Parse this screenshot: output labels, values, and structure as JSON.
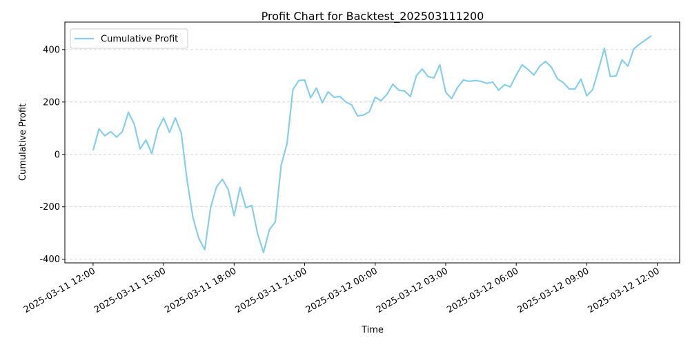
{
  "chart_data": {
    "type": "line",
    "title": "Profit Chart for Backtest_202503111200",
    "xlabel": "Time",
    "ylabel": "Cumulative Profit",
    "x": [
      "2025-03-11 12:00",
      "2025-03-11 12:15",
      "2025-03-11 12:30",
      "2025-03-11 12:45",
      "2025-03-11 13:00",
      "2025-03-11 13:15",
      "2025-03-11 13:30",
      "2025-03-11 13:45",
      "2025-03-11 14:00",
      "2025-03-11 14:15",
      "2025-03-11 14:30",
      "2025-03-11 14:45",
      "2025-03-11 15:00",
      "2025-03-11 15:15",
      "2025-03-11 15:30",
      "2025-03-11 15:45",
      "2025-03-11 16:00",
      "2025-03-11 16:15",
      "2025-03-11 16:30",
      "2025-03-11 16:45",
      "2025-03-11 17:00",
      "2025-03-11 17:15",
      "2025-03-11 17:30",
      "2025-03-11 17:45",
      "2025-03-11 18:00",
      "2025-03-11 18:15",
      "2025-03-11 18:30",
      "2025-03-11 18:45",
      "2025-03-11 19:00",
      "2025-03-11 19:15",
      "2025-03-11 19:30",
      "2025-03-11 19:45",
      "2025-03-11 20:00",
      "2025-03-11 20:15",
      "2025-03-11 20:30",
      "2025-03-11 20:45",
      "2025-03-11 21:00",
      "2025-03-11 21:15",
      "2025-03-11 21:30",
      "2025-03-11 21:45",
      "2025-03-11 22:00",
      "2025-03-11 22:15",
      "2025-03-11 22:30",
      "2025-03-11 22:45",
      "2025-03-11 23:00",
      "2025-03-11 23:15",
      "2025-03-11 23:30",
      "2025-03-11 23:45",
      "2025-03-12 00:00",
      "2025-03-12 00:15",
      "2025-03-12 00:30",
      "2025-03-12 00:45",
      "2025-03-12 01:00",
      "2025-03-12 01:15",
      "2025-03-12 01:30",
      "2025-03-12 01:45",
      "2025-03-12 02:00",
      "2025-03-12 02:15",
      "2025-03-12 02:30",
      "2025-03-12 02:45",
      "2025-03-12 03:00",
      "2025-03-12 03:15",
      "2025-03-12 03:30",
      "2025-03-12 03:45",
      "2025-03-12 04:00",
      "2025-03-12 04:15",
      "2025-03-12 04:30",
      "2025-03-12 04:45",
      "2025-03-12 05:00",
      "2025-03-12 05:15",
      "2025-03-12 05:30",
      "2025-03-12 05:45",
      "2025-03-12 06:00",
      "2025-03-12 06:15",
      "2025-03-12 06:30",
      "2025-03-12 06:45",
      "2025-03-12 07:00",
      "2025-03-12 07:15",
      "2025-03-12 07:30",
      "2025-03-12 07:45",
      "2025-03-12 08:00",
      "2025-03-12 08:15",
      "2025-03-12 08:30",
      "2025-03-12 08:45",
      "2025-03-12 09:00",
      "2025-03-12 09:15",
      "2025-03-12 09:30",
      "2025-03-12 09:45",
      "2025-03-12 10:00",
      "2025-03-12 10:15",
      "2025-03-12 10:30",
      "2025-03-12 10:45",
      "2025-03-12 11:00",
      "2025-03-12 11:15",
      "2025-03-12 11:30",
      "2025-03-12 11:45"
    ],
    "series": [
      {
        "name": "Cumulative Profit",
        "color": "#87ceeb",
        "values": [
          15,
          97,
          71,
          87,
          66,
          87,
          161,
          116,
          21,
          55,
          3,
          95,
          139,
          84,
          139,
          82,
          -100,
          -242,
          -321,
          -363,
          -203,
          -124,
          -95,
          -134,
          -234,
          -126,
          -203,
          -195,
          -303,
          -374,
          -287,
          -258,
          -42,
          42,
          247,
          282,
          284,
          216,
          253,
          197,
          239,
          218,
          221,
          200,
          189,
          147,
          150,
          163,
          218,
          205,
          229,
          268,
          245,
          242,
          221,
          300,
          326,
          297,
          292,
          342,
          237,
          213,
          255,
          284,
          279,
          282,
          279,
          271,
          276,
          245,
          266,
          258,
          303,
          342,
          324,
          303,
          337,
          355,
          332,
          289,
          274,
          250,
          250,
          287,
          224,
          247,
          324,
          405,
          297,
          300,
          361,
          337,
          403,
          421,
          437,
          453
        ]
      }
    ],
    "xlim": [
      "2025-03-11 10:48",
      "2025-03-12 12:57"
    ],
    "xticks": [
      "2025-03-11 12:00",
      "2025-03-11 15:00",
      "2025-03-11 18:00",
      "2025-03-11 21:00",
      "2025-03-12 00:00",
      "2025-03-12 03:00",
      "2025-03-12 06:00",
      "2025-03-12 09:00",
      "2025-03-12 12:00"
    ],
    "ylim": [
      -414,
      505
    ],
    "yticks": [
      -400,
      -200,
      0,
      200,
      400
    ],
    "grid": true,
    "legend": "upper left"
  }
}
